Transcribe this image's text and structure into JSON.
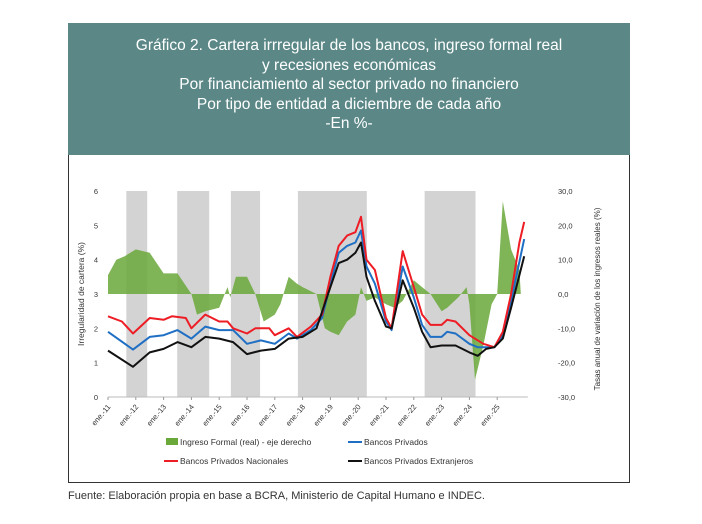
{
  "title_lines": [
    "Gráfico 2. Cartera irrregular de los bancos, ingreso formal real",
    "y recesiones económicas",
    "Por financiamiento al sector privado no financiero",
    "Por tipo de entidad a diciembre de cada año",
    "-En %-"
  ],
  "source": "Fuente: Elaboración propia en base a BCRA, Ministerio de Capital Humano e INDEC.",
  "chart_data": {
    "type": "line",
    "ylabel": "Irregularidad de cartera (%)",
    "ylabel_right": "Tasas anual de variación de los ingresos reales (%)",
    "ylim": [
      0,
      6
    ],
    "ylim_right": [
      -30,
      30
    ],
    "yticks": [
      "0",
      "1",
      "2",
      "3",
      "4",
      "5",
      "6"
    ],
    "yticks_right": [
      "-30,0",
      "-20,0",
      "-10,0",
      "0,0",
      "10,0",
      "20,0",
      "30,0"
    ],
    "xlim": [
      2011,
      2026
    ],
    "xticks": [
      "ene.-11",
      "ene.-12",
      "ene.-13",
      "ene.-14",
      "ene.-15",
      "ene.-16",
      "ene.-17",
      "ene.-18",
      "ene.-19",
      "ene.-20",
      "ene.-21",
      "ene.-22",
      "ene.-23",
      "ene.-24",
      "ene.-25"
    ],
    "recessions": [
      [
        2011.66,
        2012.41
      ],
      [
        2013.49,
        2014.64
      ],
      [
        2015.42,
        2016.47
      ],
      [
        2017.83,
        2020.31
      ],
      [
        2022.39,
        2024.22
      ]
    ],
    "series": [
      {
        "name": "Ingreso Formal (real) - eje derecho",
        "axis": "right",
        "kind": "area",
        "color": "#6aa83a",
        "points": [
          [
            2011,
            5.5
          ],
          [
            2011.3,
            10
          ],
          [
            2011.6,
            11
          ],
          [
            2012,
            13
          ],
          [
            2012.5,
            12
          ],
          [
            2013,
            6
          ],
          [
            2013.5,
            6
          ],
          [
            2014,
            0
          ],
          [
            2014.2,
            -6
          ],
          [
            2014.5,
            -5
          ],
          [
            2015,
            -4
          ],
          [
            2015.3,
            2
          ],
          [
            2015.4,
            -1
          ],
          [
            2015.6,
            5
          ],
          [
            2016,
            5
          ],
          [
            2016.3,
            0
          ],
          [
            2016.6,
            -8
          ],
          [
            2017,
            -6
          ],
          [
            2017.2,
            -3
          ],
          [
            2017.5,
            5
          ],
          [
            2017.8,
            3
          ],
          [
            2018,
            2
          ],
          [
            2018.5,
            0
          ],
          [
            2018.8,
            -10
          ],
          [
            2019,
            -11
          ],
          [
            2019.3,
            -12
          ],
          [
            2019.6,
            -8
          ],
          [
            2019.9,
            -6
          ],
          [
            2020.1,
            2
          ],
          [
            2020.3,
            -2
          ],
          [
            2020.6,
            -1
          ],
          [
            2021,
            -3
          ],
          [
            2021.3,
            -4
          ],
          [
            2021.6,
            -2
          ],
          [
            2022,
            4
          ],
          [
            2022.3,
            2
          ],
          [
            2022.6,
            0
          ],
          [
            2023,
            -5
          ],
          [
            2023.2,
            -4
          ],
          [
            2023.6,
            -1
          ],
          [
            2023.9,
            2
          ],
          [
            2024,
            -3
          ],
          [
            2024.2,
            -25
          ],
          [
            2024.5,
            -15
          ],
          [
            2024.8,
            -3
          ],
          [
            2025,
            0
          ],
          [
            2025.2,
            27
          ],
          [
            2025.5,
            13
          ],
          [
            2025.8,
            7
          ],
          [
            2025.85,
            0
          ]
        ]
      },
      {
        "name": "Bancos Privados",
        "axis": "left",
        "kind": "line",
        "color": "#1f6fc4",
        "points": [
          [
            2011,
            1.9
          ],
          [
            2011.9,
            1.38
          ],
          [
            2012.5,
            1.75
          ],
          [
            2013,
            1.8
          ],
          [
            2013.5,
            1.95
          ],
          [
            2014,
            1.7
          ],
          [
            2014.5,
            2.05
          ],
          [
            2015,
            1.95
          ],
          [
            2015.5,
            1.95
          ],
          [
            2016,
            1.55
          ],
          [
            2016.5,
            1.65
          ],
          [
            2017,
            1.55
          ],
          [
            2017.5,
            1.85
          ],
          [
            2017.8,
            1.7
          ],
          [
            2018.3,
            1.95
          ],
          [
            2018.7,
            2.3
          ],
          [
            2019,
            3.3
          ],
          [
            2019.3,
            4.2
          ],
          [
            2019.6,
            4.4
          ],
          [
            2019.9,
            4.5
          ],
          [
            2020.1,
            4.85
          ],
          [
            2020.3,
            3.8
          ],
          [
            2020.6,
            3.3
          ],
          [
            2021,
            2.2
          ],
          [
            2021.2,
            1.95
          ],
          [
            2021.6,
            3.8
          ],
          [
            2022,
            2.9
          ],
          [
            2022.3,
            2.1
          ],
          [
            2022.6,
            1.75
          ],
          [
            2023,
            1.75
          ],
          [
            2023.2,
            1.9
          ],
          [
            2023.5,
            1.85
          ],
          [
            2024,
            1.55
          ],
          [
            2024.3,
            1.45
          ],
          [
            2024.9,
            1.45
          ],
          [
            2025.2,
            1.8
          ],
          [
            2025.5,
            2.8
          ],
          [
            2025.97,
            4.6
          ]
        ]
      },
      {
        "name": "Bancos Privados Nacionales",
        "axis": "left",
        "kind": "line",
        "color": "#ee1c24",
        "points": [
          [
            2011,
            2.35
          ],
          [
            2011.5,
            2.2
          ],
          [
            2011.9,
            1.85
          ],
          [
            2012.5,
            2.3
          ],
          [
            2013,
            2.25
          ],
          [
            2013.3,
            2.35
          ],
          [
            2013.8,
            2.3
          ],
          [
            2014,
            2.0
          ],
          [
            2014.5,
            2.4
          ],
          [
            2015,
            2.2
          ],
          [
            2015.3,
            2.2
          ],
          [
            2015.5,
            2.0
          ],
          [
            2016,
            1.85
          ],
          [
            2016.3,
            2.0
          ],
          [
            2016.8,
            2.0
          ],
          [
            2017,
            1.8
          ],
          [
            2017.5,
            2.0
          ],
          [
            2017.8,
            1.75
          ],
          [
            2018.3,
            2.05
          ],
          [
            2018.7,
            2.4
          ],
          [
            2019,
            3.5
          ],
          [
            2019.3,
            4.4
          ],
          [
            2019.6,
            4.7
          ],
          [
            2019.9,
            4.8
          ],
          [
            2020.1,
            5.25
          ],
          [
            2020.3,
            4.0
          ],
          [
            2020.6,
            3.7
          ],
          [
            2021,
            2.3
          ],
          [
            2021.2,
            2.0
          ],
          [
            2021.6,
            4.25
          ],
          [
            2022,
            3.2
          ],
          [
            2022.3,
            2.4
          ],
          [
            2022.6,
            2.1
          ],
          [
            2023,
            2.1
          ],
          [
            2023.2,
            2.25
          ],
          [
            2023.5,
            2.2
          ],
          [
            2024,
            1.8
          ],
          [
            2024.5,
            1.55
          ],
          [
            2024.9,
            1.45
          ],
          [
            2025.2,
            1.9
          ],
          [
            2025.5,
            3.0
          ],
          [
            2025.8,
            4.5
          ],
          [
            2025.97,
            5.1
          ]
        ]
      },
      {
        "name": "Bancos Privados Extranjeros",
        "axis": "left",
        "kind": "line",
        "color": "#111111",
        "points": [
          [
            2011,
            1.35
          ],
          [
            2011.9,
            0.88
          ],
          [
            2012.5,
            1.3
          ],
          [
            2013,
            1.4
          ],
          [
            2013.5,
            1.6
          ],
          [
            2014,
            1.45
          ],
          [
            2014.5,
            1.75
          ],
          [
            2015,
            1.7
          ],
          [
            2015.5,
            1.6
          ],
          [
            2016,
            1.25
          ],
          [
            2016.5,
            1.35
          ],
          [
            2017,
            1.4
          ],
          [
            2017.5,
            1.7
          ],
          [
            2018,
            1.75
          ],
          [
            2018.5,
            2.0
          ],
          [
            2019,
            3.2
          ],
          [
            2019.3,
            3.9
          ],
          [
            2019.6,
            4.0
          ],
          [
            2019.9,
            4.2
          ],
          [
            2020.1,
            4.5
          ],
          [
            2020.3,
            3.5
          ],
          [
            2020.6,
            2.8
          ],
          [
            2021,
            2.05
          ],
          [
            2021.2,
            2.0
          ],
          [
            2021.6,
            3.4
          ],
          [
            2022,
            2.6
          ],
          [
            2022.3,
            1.9
          ],
          [
            2022.6,
            1.45
          ],
          [
            2023,
            1.5
          ],
          [
            2023.5,
            1.5
          ],
          [
            2024,
            1.3
          ],
          [
            2024.3,
            1.2
          ],
          [
            2024.6,
            1.4
          ],
          [
            2024.9,
            1.45
          ],
          [
            2025.2,
            1.7
          ],
          [
            2025.5,
            2.6
          ],
          [
            2025.97,
            4.1
          ]
        ]
      }
    ],
    "legend_position": "bottom"
  }
}
